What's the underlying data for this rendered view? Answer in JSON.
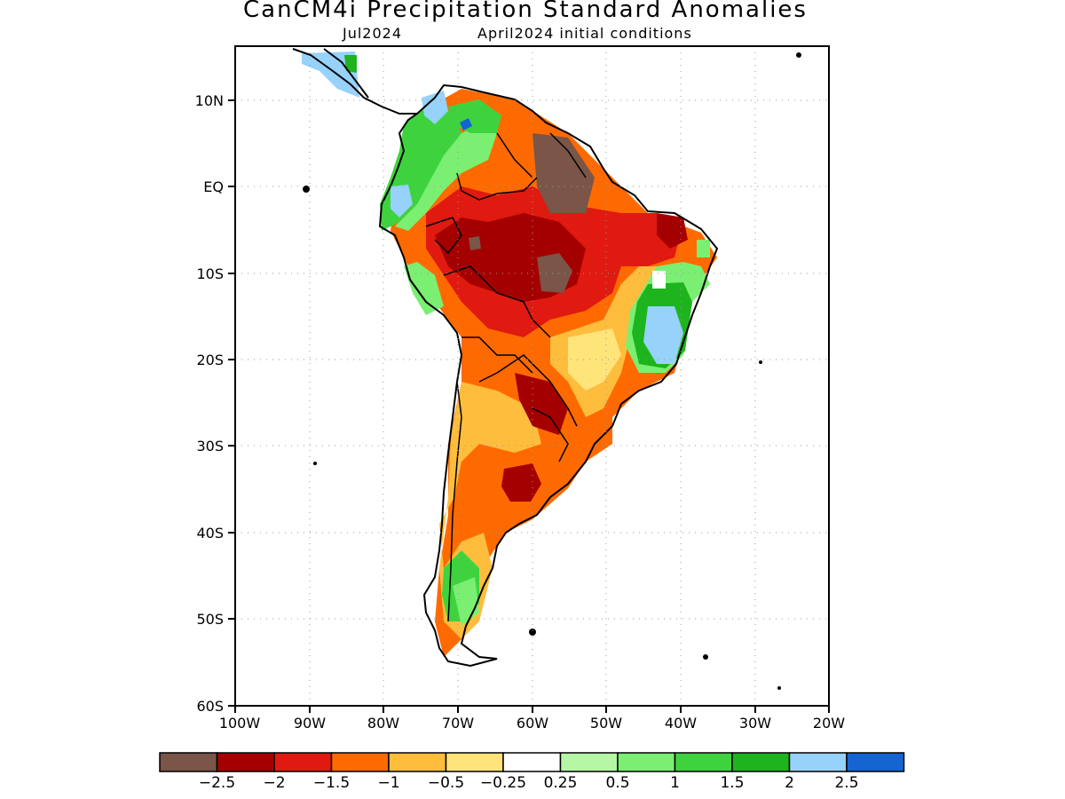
{
  "title": "CanCM4i Precipitation Standard Anomalies",
  "subtitle": {
    "target_month": "Jul2024",
    "initial_conditions": "April2024 initial conditions"
  },
  "axes": {
    "lat_labels": [
      "10N",
      "EQ",
      "10S",
      "20S",
      "30S",
      "40S",
      "50S",
      "60S"
    ],
    "lon_labels": [
      "100W",
      "90W",
      "80W",
      "70W",
      "60W",
      "50W",
      "40W",
      "30W",
      "20W"
    ],
    "lat_range": [
      -60,
      15
    ],
    "lon_range": [
      -100,
      -20
    ],
    "grid": "dotted"
  },
  "legend": {
    "colors": [
      "#7a5548",
      "#a50000",
      "#e01a10",
      "#ff6a00",
      "#ffbd3e",
      "#ffe47a",
      "#ffffff",
      "#b5f7a5",
      "#7aef72",
      "#3ed33e",
      "#1eb41e",
      "#96d2fa",
      "#1464d2"
    ],
    "labels": [
      "−2.5",
      "−2",
      "−1.5",
      "−1",
      "−0.5",
      "−0.25",
      "0.25",
      "0.5",
      "1",
      "1.5",
      "2",
      "2.5"
    ]
  }
}
